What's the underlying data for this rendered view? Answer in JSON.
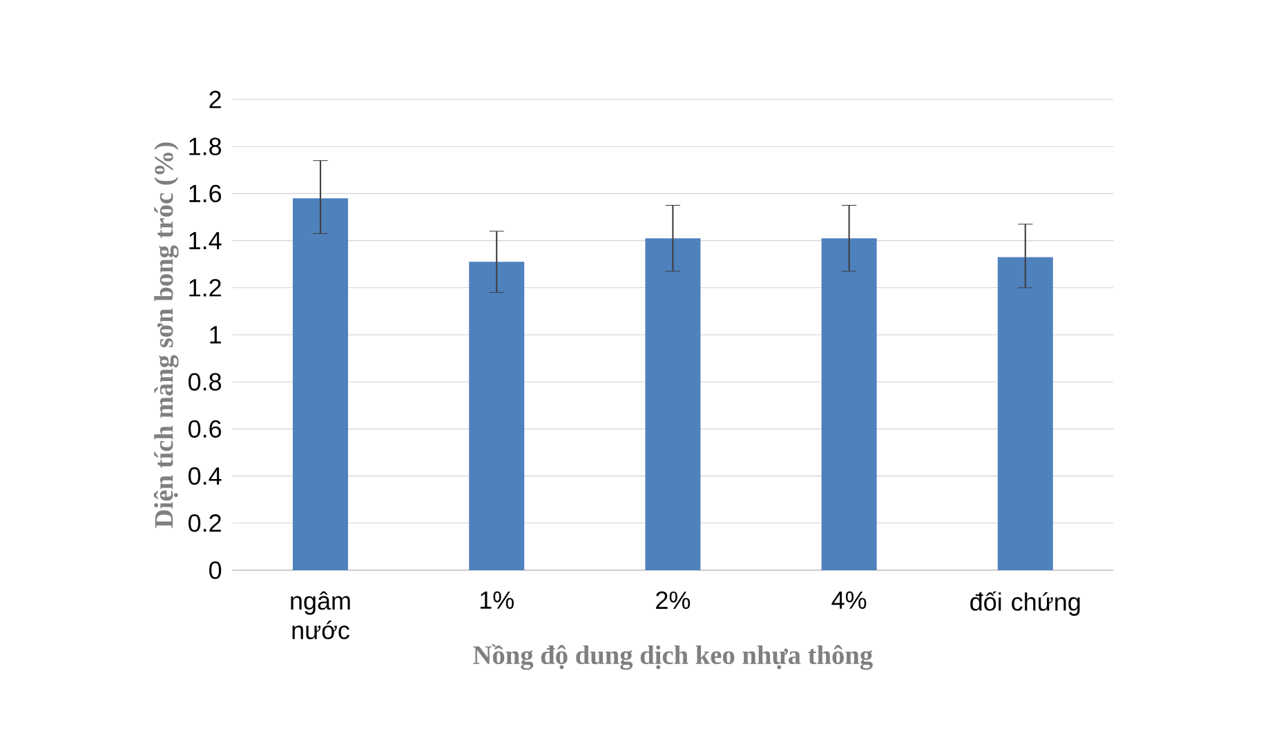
{
  "chart_data": {
    "type": "bar",
    "xlabel": "Nồng độ dung dịch keo nhựa thông",
    "ylabel": "Diện tích màng sơn bong tróc (%)",
    "categories": [
      "ngâm nước",
      "1%",
      "2%",
      "4%",
      "đối chứng"
    ],
    "values": [
      1.58,
      1.31,
      1.41,
      1.41,
      1.33
    ],
    "errors": [
      [
        1.43,
        1.74
      ],
      [
        1.18,
        1.44
      ],
      [
        1.27,
        1.55
      ],
      [
        1.27,
        1.55
      ],
      [
        1.2,
        1.47
      ]
    ],
    "color": "#4f81bd",
    "ylim": [
      0,
      2
    ],
    "yticks": [
      0,
      0.2,
      0.4,
      0.6,
      0.8,
      1,
      1.2,
      1.4,
      1.6,
      1.8,
      2
    ],
    "grid": "y"
  }
}
